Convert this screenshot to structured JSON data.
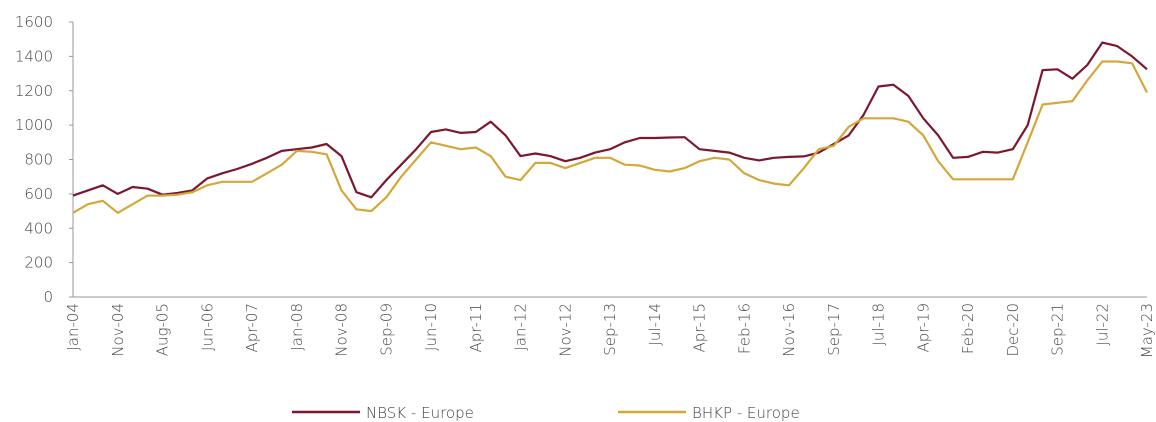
{
  "chart_data": {
    "type": "line",
    "categories": [
      "Jan-04",
      null,
      null,
      "Nov-04",
      null,
      null,
      "Aug-05",
      null,
      null,
      "Jun-06",
      null,
      null,
      "Apr-07",
      null,
      null,
      "Jan-08",
      null,
      null,
      "Nov-08",
      null,
      null,
      "Sep-09",
      null,
      null,
      "Jun-10",
      null,
      null,
      "Apr-11",
      null,
      null,
      "Jan-12",
      null,
      null,
      "Nov-12",
      null,
      null,
      "Sep-13",
      null,
      null,
      "Jul-14",
      null,
      null,
      "Apr-15",
      null,
      null,
      "Feb-16",
      null,
      null,
      "Nov-16",
      null,
      null,
      "Sep-17",
      null,
      null,
      "Jul-18",
      null,
      null,
      "Apr-19",
      null,
      null,
      "Feb-20",
      null,
      null,
      "Dec-20",
      null,
      null,
      "Sep-21",
      null,
      null,
      "Jul-22",
      null,
      null,
      "May-23"
    ],
    "series": [
      {
        "name": "NBSK - Europe",
        "color": "#7b1830",
        "values": [
          590,
          620,
          650,
          600,
          640,
          630,
          595,
          605,
          620,
          690,
          720,
          745,
          775,
          810,
          850,
          860,
          870,
          890,
          820,
          610,
          580,
          680,
          770,
          860,
          960,
          975,
          955,
          960,
          1020,
          940,
          820,
          835,
          820,
          790,
          810,
          840,
          860,
          900,
          925,
          925,
          928,
          930,
          860,
          850,
          840,
          810,
          795,
          810,
          815,
          818,
          840,
          890,
          940,
          1060,
          1225,
          1235,
          1170,
          1040,
          940,
          810,
          815,
          845,
          840,
          860,
          1000,
          1320,
          1325,
          1270,
          1350,
          1480,
          1460,
          1400,
          1325
        ]
      },
      {
        "name": "BHKP - Europe",
        "color": "#d4a73a",
        "values": [
          490,
          540,
          560,
          490,
          540,
          590,
          590,
          595,
          610,
          650,
          670,
          670,
          670,
          720,
          770,
          850,
          845,
          830,
          620,
          510,
          500,
          580,
          700,
          800,
          900,
          880,
          860,
          870,
          820,
          700,
          680,
          780,
          780,
          750,
          780,
          810,
          810,
          770,
          765,
          740,
          730,
          750,
          790,
          810,
          800,
          720,
          680,
          660,
          650,
          750,
          860,
          880,
          990,
          1040,
          1040,
          1040,
          1020,
          940,
          790,
          685,
          685,
          685,
          685,
          685,
          900,
          1120,
          1130,
          1140,
          1260,
          1370,
          1370,
          1360,
          1190
        ]
      }
    ],
    "ylim": [
      0,
      1600
    ],
    "yticks": [
      0,
      200,
      400,
      600,
      800,
      1000,
      1200,
      1400,
      1600
    ],
    "grid": false
  }
}
